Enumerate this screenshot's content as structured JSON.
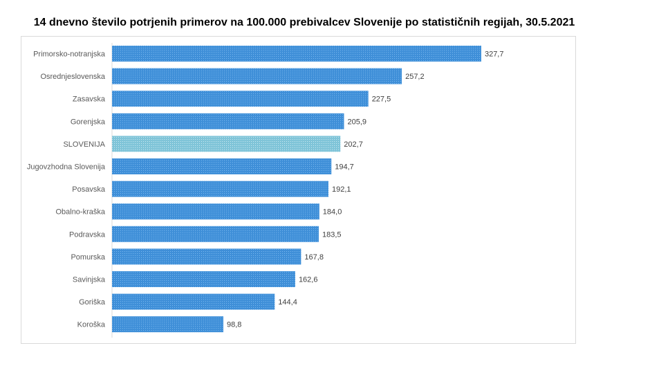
{
  "chart_data": {
    "type": "bar",
    "orientation": "horizontal",
    "title": "14 dnevno število potrjenih primerov na 100.000 prebivalcev Slovenije po statističnih regijah, 30.5.2021",
    "categories": [
      "Primorsko-notranjska",
      "Osrednjeslovenska",
      "Zasavska",
      "Gorenjska",
      "SLOVENIJA",
      "Jugovzhodna Slovenija",
      "Posavska",
      "Obalno-kraška",
      "Podravska",
      "Pomurska",
      "Savinjska",
      "Goriška",
      "Koroška"
    ],
    "values": [
      327.7,
      257.2,
      227.5,
      205.9,
      202.7,
      194.7,
      192.1,
      184.0,
      183.5,
      167.8,
      162.6,
      144.4,
      98.8
    ],
    "value_labels": [
      "327,7",
      "257,2",
      "227,5",
      "205,9",
      "202,7",
      "194,7",
      "192,1",
      "184,0",
      "183,5",
      "167,8",
      "162,6",
      "144,4",
      "98,8"
    ],
    "highlight_category": "SLOVENIJA",
    "xlim": [
      0,
      340
    ],
    "grid": false,
    "colors": {
      "bar": "#3f8fd8",
      "bar_pattern": "#7ab8ef",
      "highlight": "#7fc4d8",
      "highlight_pattern": "#c9e8f0"
    }
  }
}
